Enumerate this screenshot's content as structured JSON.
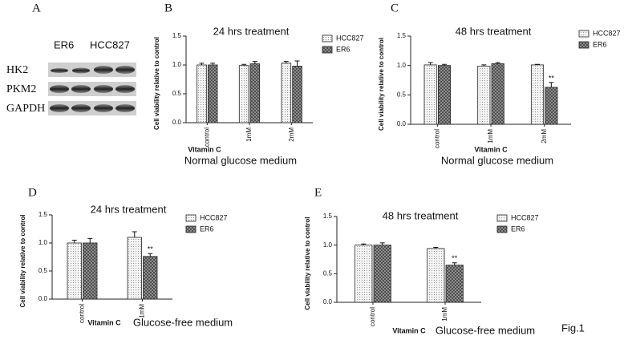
{
  "panel_a": {
    "label": "A",
    "groups": [
      "ER6",
      "HCC827"
    ],
    "rows": [
      "HK2",
      "PKM2",
      "GAPDH"
    ]
  },
  "figure_label": "Fig.1",
  "chart_data": [
    {
      "type": "bar",
      "panel": "B",
      "title": "24 hrs treatment",
      "y_label": "Cell viability relative to control",
      "x_label": "Vitamin C",
      "caption": "Normal glucose medium",
      "categories": [
        "control",
        "1mM",
        "2mM"
      ],
      "series": [
        {
          "name": "HCC827",
          "color": "#f4f4f4",
          "values": [
            1.0,
            0.99,
            1.03
          ],
          "errors": [
            0.03,
            0.02,
            0.03
          ]
        },
        {
          "name": "ER6",
          "color": "#9a9a9a",
          "values": [
            1.0,
            1.02,
            0.98
          ],
          "errors": [
            0.03,
            0.04,
            0.09
          ]
        }
      ],
      "ylim": [
        0,
        1.5
      ],
      "yticks": [
        {
          "value": 0,
          "label": "0.0"
        },
        0.5,
        {
          "value": 1,
          "label": "1.0"
        },
        1.5
      ]
    },
    {
      "type": "bar",
      "panel": "C",
      "title": "48 hrs treatment",
      "y_label": "Cell viability relative to control",
      "x_label": "Vitamin C",
      "caption": "Normal glucose medium",
      "categories": [
        "control",
        "1mM",
        "2mM"
      ],
      "series": [
        {
          "name": "HCC827",
          "color": "#f4f4f4",
          "values": [
            1.01,
            0.99,
            1.01
          ],
          "errors": [
            0.04,
            0.02,
            0.01
          ]
        },
        {
          "name": "ER6",
          "color": "#9a9a9a",
          "values": [
            1.0,
            1.03,
            0.63
          ],
          "errors": [
            0.02,
            0.02,
            0.08
          ],
          "labels": [
            null,
            null,
            "**"
          ]
        }
      ],
      "ylim": [
        0,
        1.5
      ],
      "yticks": [
        {
          "value": 0,
          "label": "0.0"
        },
        0.5,
        {
          "value": 1,
          "label": "1.0"
        },
        1.5
      ]
    },
    {
      "type": "bar",
      "panel": "D",
      "title": "24 hrs treatment",
      "y_label": "Cell viability relative to control",
      "x_label": "Vitamin C",
      "caption": "Glucose-free medium",
      "categories": [
        "control",
        "1mM"
      ],
      "series": [
        {
          "name": "HCC827",
          "color": "#f4f4f4",
          "values": [
            1.0,
            1.1
          ],
          "errors": [
            0.05,
            0.1
          ]
        },
        {
          "name": "ER6",
          "color": "#9a9a9a",
          "values": [
            1.0,
            0.76
          ],
          "errors": [
            0.08,
            0.05
          ],
          "labels": [
            null,
            "**"
          ]
        }
      ],
      "ylim": [
        0,
        1.5
      ],
      "yticks": [
        {
          "value": 0,
          "label": "0.0"
        },
        0.5,
        {
          "value": 1,
          "label": "1.0"
        },
        1.5
      ]
    },
    {
      "type": "bar",
      "panel": "E",
      "title": "48 hrs treatment",
      "y_label": "Cell viability relative to control",
      "x_label": "Vitamin C",
      "caption": "Glucose-free medium",
      "categories": [
        "control",
        "1mM"
      ],
      "series": [
        {
          "name": "HCC827",
          "color": "#f4f4f4",
          "values": [
            1.0,
            0.94
          ],
          "errors": [
            0.02,
            0.02
          ]
        },
        {
          "name": "ER6",
          "color": "#9a9a9a",
          "values": [
            1.0,
            0.65
          ],
          "errors": [
            0.04,
            0.04
          ],
          "labels": [
            null,
            "**"
          ]
        }
      ],
      "ylim": [
        0,
        1.5
      ],
      "yticks": [
        {
          "value": 0,
          "label": "0.0"
        },
        0.5,
        {
          "value": 1,
          "label": "1.0"
        },
        1.5
      ]
    }
  ]
}
